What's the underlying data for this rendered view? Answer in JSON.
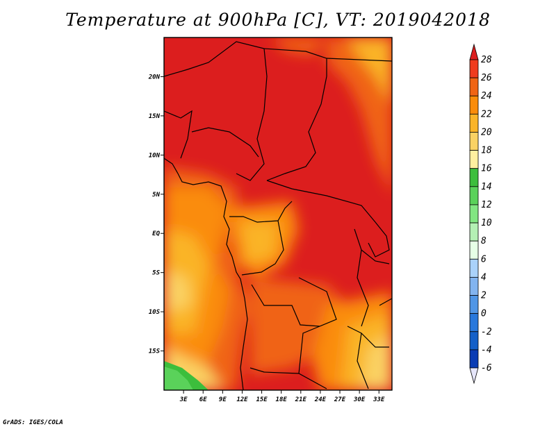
{
  "title": "Temperature at 900hPa [C], VT: 2019042018",
  "credit": "GrADS: IGES/COLA",
  "map": {
    "lat_range": [
      -20,
      25
    ],
    "lon_range": [
      0,
      35
    ],
    "lat_ticks": [
      {
        "lat": 20,
        "label": "20N"
      },
      {
        "lat": 15,
        "label": "15N"
      },
      {
        "lat": 10,
        "label": "10N"
      },
      {
        "lat": 5,
        "label": "5N"
      },
      {
        "lat": 0,
        "label": "EQ"
      },
      {
        "lat": -5,
        "label": "5S"
      },
      {
        "lat": -10,
        "label": "10S"
      },
      {
        "lat": -15,
        "label": "15S"
      }
    ],
    "lon_ticks": [
      {
        "lon": 3,
        "label": "3E"
      },
      {
        "lon": 6,
        "label": "6E"
      },
      {
        "lon": 9,
        "label": "9E"
      },
      {
        "lon": 12,
        "label": "12E"
      },
      {
        "lon": 15,
        "label": "15E"
      },
      {
        "lon": 18,
        "label": "18E"
      },
      {
        "lon": 21,
        "label": "21E"
      },
      {
        "lon": 24,
        "label": "24E"
      },
      {
        "lon": 27,
        "label": "27E"
      },
      {
        "lon": 30,
        "label": "30E"
      },
      {
        "lon": 33,
        "label": "33E"
      }
    ]
  },
  "colorbar": {
    "levels": [
      "28",
      "26",
      "24",
      "22",
      "20",
      "18",
      "16",
      "14",
      "12",
      "10",
      "8",
      "6",
      "4",
      "2",
      "0",
      "-2",
      "-4",
      "-6"
    ],
    "colors": [
      "#dc1e1e",
      "#f03c1e",
      "#f06414",
      "#fa8c0a",
      "#fab428",
      "#fad264",
      "#fff0a0",
      "#3cbe3c",
      "#5ad25a",
      "#82e682",
      "#b4f0b4",
      "#e6ffe6",
      "#aad2fa",
      "#82b4f0",
      "#5096e6",
      "#2878dc",
      "#1460c8",
      "#0a3cb4",
      "#0a0a78"
    ],
    "top_color": "#dc1e1e",
    "bottom_color": "#e6e6fa"
  }
}
